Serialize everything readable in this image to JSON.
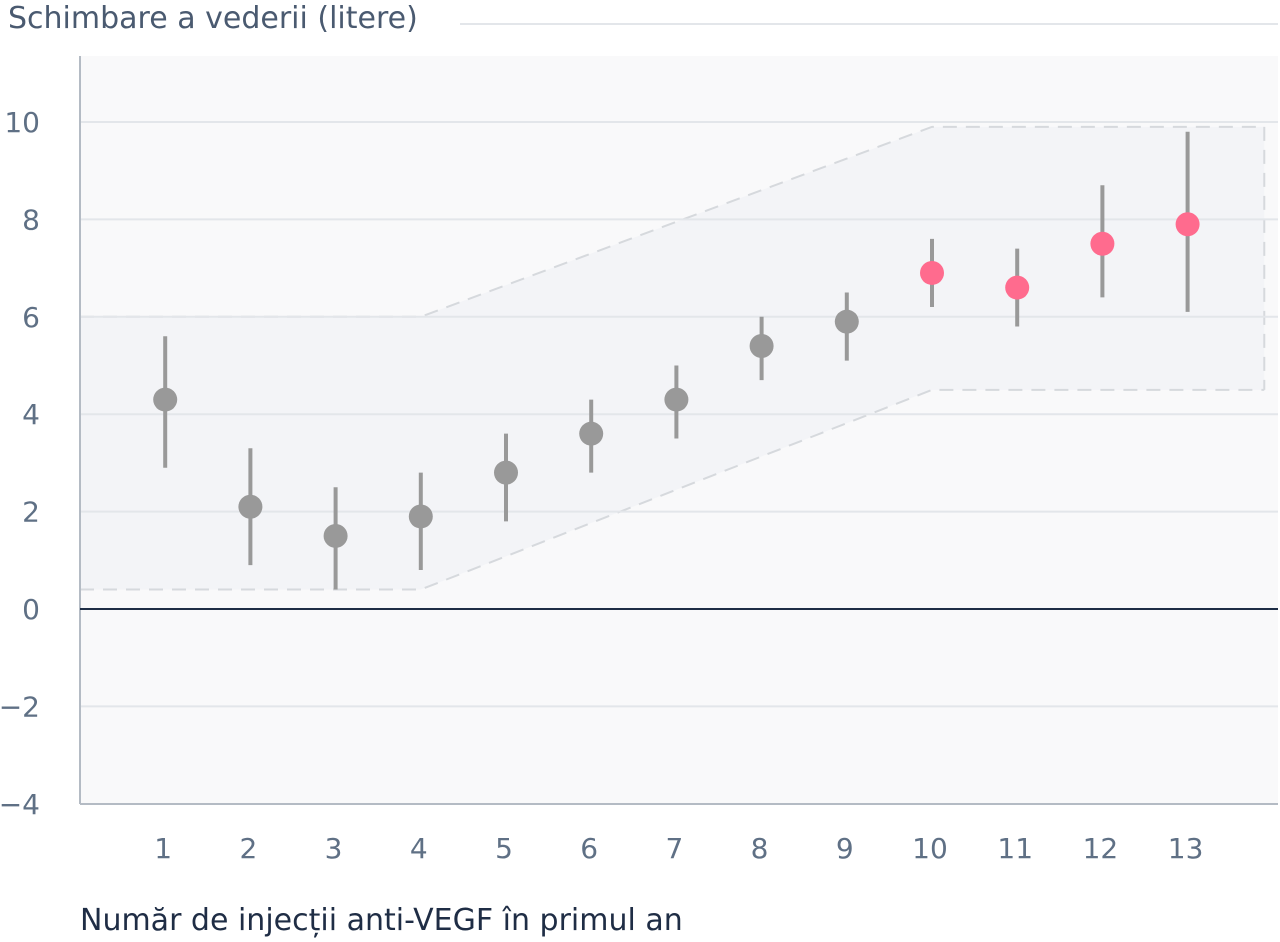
{
  "chart_data": {
    "type": "scatter",
    "ylabel": "Schimbare a vederii (litere)",
    "xlabel": "Număr de injecții anti-VEGF în primul an",
    "ylim": [
      -4,
      11
    ],
    "xlim": [
      0,
      14
    ],
    "yticks": [
      -4,
      -2,
      0,
      2,
      4,
      6,
      8,
      10
    ],
    "ytick_labels": [
      "−4",
      "−2",
      "0",
      "2",
      "4",
      "6",
      "8",
      "10"
    ],
    "xticks": [
      1,
      2,
      3,
      4,
      5,
      6,
      7,
      8,
      9,
      10,
      11,
      12,
      13
    ],
    "xtick_labels": [
      "1",
      "2",
      "3",
      "4",
      "5",
      "6",
      "7",
      "8",
      "9",
      "10",
      "11",
      "12",
      "13"
    ],
    "grid": true,
    "points": [
      {
        "x": 1,
        "y": 4.3,
        "low": 2.9,
        "high": 5.6,
        "color": "#999999"
      },
      {
        "x": 2,
        "y": 2.1,
        "low": 0.9,
        "high": 3.3,
        "color": "#999999"
      },
      {
        "x": 3,
        "y": 1.5,
        "low": 0.4,
        "high": 2.5,
        "color": "#999999"
      },
      {
        "x": 4,
        "y": 1.9,
        "low": 0.8,
        "high": 2.8,
        "color": "#999999"
      },
      {
        "x": 5,
        "y": 2.8,
        "low": 1.8,
        "high": 3.6,
        "color": "#999999"
      },
      {
        "x": 6,
        "y": 3.6,
        "low": 2.8,
        "high": 4.3,
        "color": "#999999"
      },
      {
        "x": 7,
        "y": 4.3,
        "low": 3.5,
        "high": 5.0,
        "color": "#999999"
      },
      {
        "x": 8,
        "y": 5.4,
        "low": 4.7,
        "high": 6.0,
        "color": "#999999"
      },
      {
        "x": 9,
        "y": 5.9,
        "low": 5.1,
        "high": 6.5,
        "color": "#999999"
      },
      {
        "x": 10,
        "y": 6.9,
        "low": 6.2,
        "high": 7.6,
        "color": "#ff6b8e"
      },
      {
        "x": 11,
        "y": 6.6,
        "low": 5.8,
        "high": 7.4,
        "color": "#ff6b8e"
      },
      {
        "x": 12,
        "y": 7.5,
        "low": 6.4,
        "high": 8.7,
        "color": "#ff6b8e"
      },
      {
        "x": 13,
        "y": 7.9,
        "low": 6.1,
        "high": 9.8,
        "color": "#ff6b8e"
      }
    ],
    "band": {
      "upper": [
        [
          0,
          6.0
        ],
        [
          4,
          6.0
        ],
        [
          10,
          9.9
        ],
        [
          13.9,
          9.9
        ]
      ],
      "lower": [
        [
          0,
          0.4
        ],
        [
          4,
          0.4
        ],
        [
          10,
          4.5
        ],
        [
          13.9,
          4.5
        ]
      ]
    },
    "colors": {
      "point_default": "#999999",
      "point_highlight": "#ff6b8e",
      "zero_line": "#1e2d45",
      "grid": "#e3e6ea",
      "band_fill": "#f3f4f7",
      "band_edge": "#d6d9dd",
      "plot_bg": "#f9f9fa"
    }
  }
}
